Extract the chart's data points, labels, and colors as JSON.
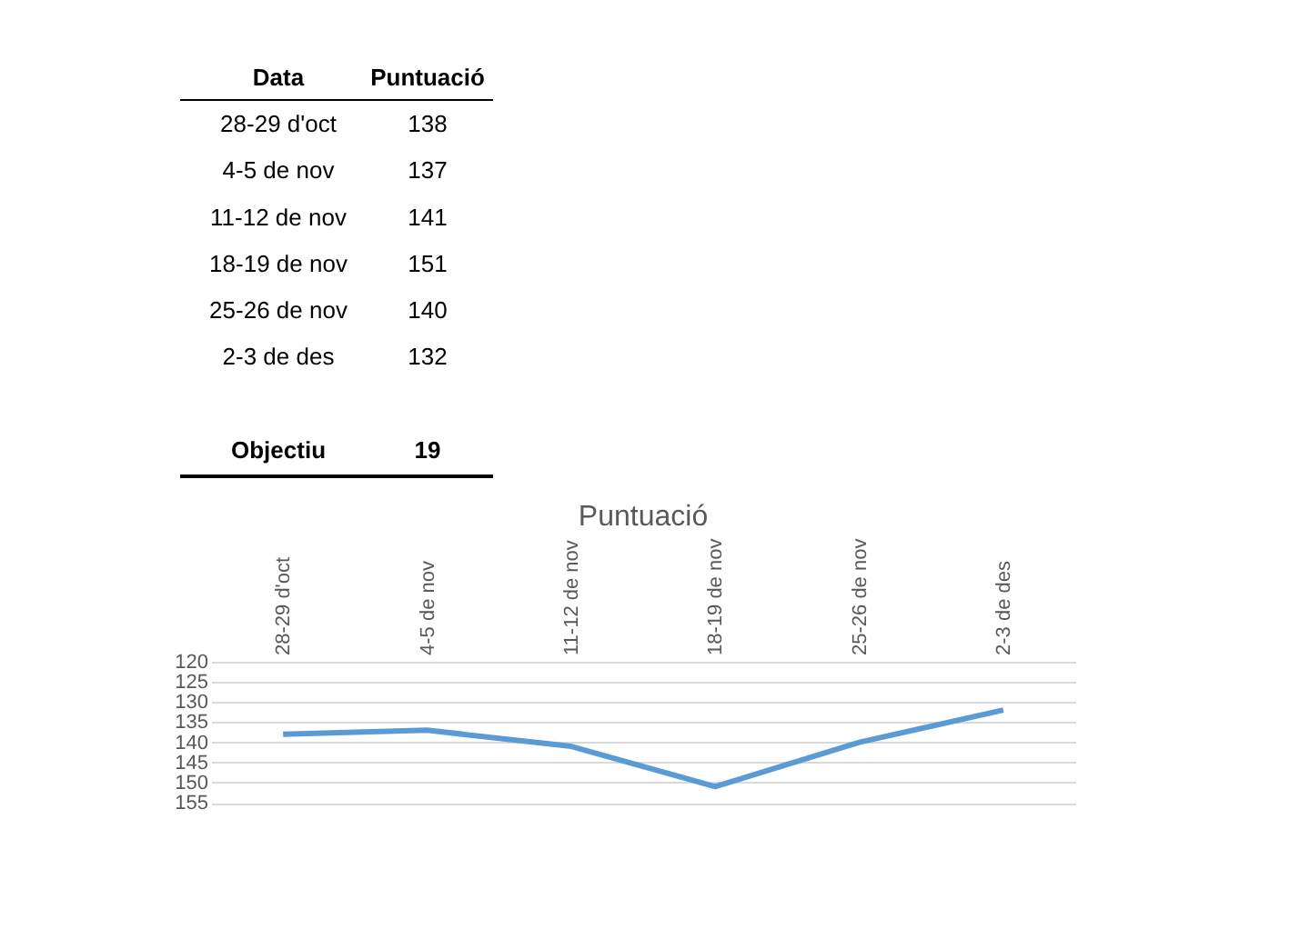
{
  "chart_data": [
    {
      "type": "other",
      "annotations": [
        "Data",
        "Puntuació",
        "28-29 d'oct",
        "138",
        "4-5 de nov",
        "137",
        "11-12 de nov",
        "141",
        "18-19 de nov",
        "151",
        "25-26 de nov",
        "140",
        "2-3 de des",
        "132",
        "Objectiu",
        "19"
      ]
    },
    {
      "type": "line",
      "title": "Puntuació",
      "categories": [
        "28-29 d'oct",
        "4-5 de nov",
        "11-12 de nov",
        "18-19 de nov",
        "25-26 de nov",
        "2-3 de des"
      ],
      "series": [
        {
          "color": "#5b9bd5",
          "values": [
            138,
            137,
            141,
            151,
            140,
            132
          ]
        }
      ],
      "ylim": [
        157,
        120
      ],
      "yticks": [
        120,
        125,
        130,
        135,
        140,
        145,
        150,
        155
      ],
      "grid": "y",
      "marker": "none",
      "line_style": "solid"
    }
  ]
}
